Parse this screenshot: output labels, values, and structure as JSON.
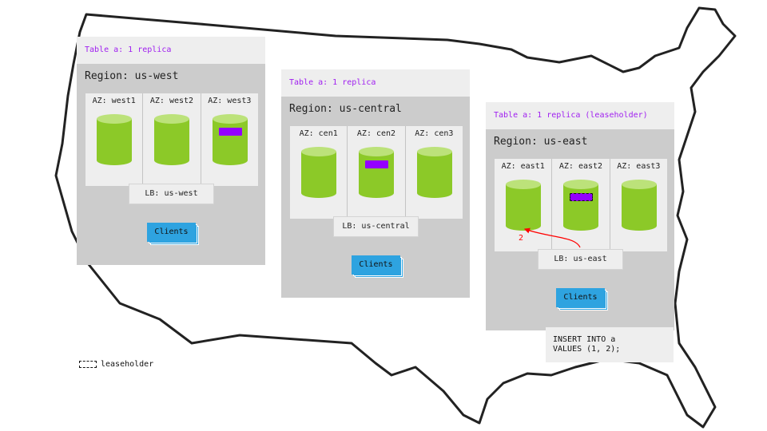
{
  "colors": {
    "replica": "#9400ff",
    "node": "#8cc928",
    "node_top": "#bce27a",
    "clients": "#2ea3e0",
    "table_label": "#a020f0",
    "arrow": "#ff0000"
  },
  "regions": [
    {
      "table_label": "Table a: 1 replica",
      "region_label": "Region: us-west",
      "azs": [
        "AZ: west1",
        "AZ: west2",
        "AZ: west3"
      ],
      "replica_az": 2,
      "leaseholder": false,
      "lb": "LB: us-west",
      "clients": "Clients"
    },
    {
      "table_label": "Table a: 1 replica",
      "region_label": "Region: us-central",
      "azs": [
        "AZ: cen1",
        "AZ: cen2",
        "AZ: cen3"
      ],
      "replica_az": 1,
      "leaseholder": false,
      "lb": "LB: us-central",
      "clients": "Clients"
    },
    {
      "table_label": "Table a: 1 replica (leaseholder)",
      "region_label": "Region: us-east",
      "azs": [
        "AZ: east1",
        "AZ: east2",
        "AZ: east3"
      ],
      "replica_az": 1,
      "leaseholder": true,
      "lb": "LB: us-east",
      "clients": "Clients"
    }
  ],
  "arrow_label": "2",
  "insert_statement": "INSERT INTO a\nVALUES (1, 2);",
  "legend": {
    "label": "leaseholder"
  }
}
